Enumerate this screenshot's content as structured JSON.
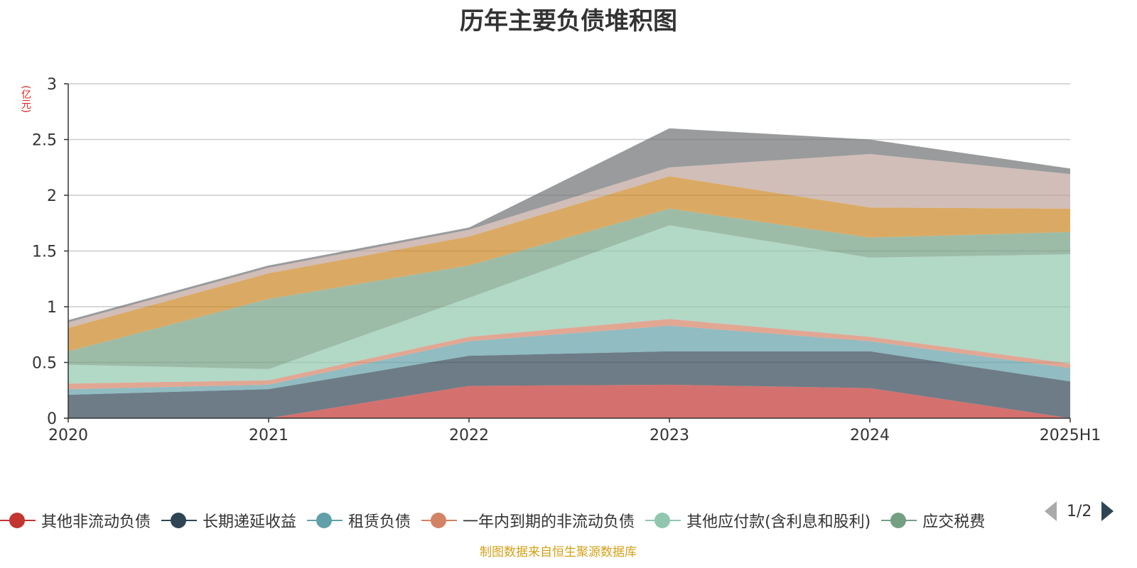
{
  "chart_data": {
    "type": "area",
    "stacked": true,
    "title": "历年主要负债堆积图",
    "unit_label": "(亿元)",
    "categories": [
      "2020",
      "2021",
      "2022",
      "2023",
      "2024",
      "2025H1"
    ],
    "ylim": [
      0,
      3
    ],
    "yticks": [
      "0",
      "0.5",
      "1",
      "1.5",
      "2",
      "2.5",
      "3"
    ],
    "grid": true,
    "series": [
      {
        "name": "其他非流动负债",
        "color": "#c23531",
        "values": [
          0,
          0,
          0.29,
          0.3,
          0.27,
          0
        ]
      },
      {
        "name": "长期递延收益",
        "color": "#2f4554",
        "values": [
          0.21,
          0.26,
          0.27,
          0.3,
          0.33,
          0.33
        ]
      },
      {
        "name": "租赁负债",
        "color": "#61a0a8",
        "values": [
          0.05,
          0.04,
          0.13,
          0.23,
          0.09,
          0.12
        ]
      },
      {
        "name": "一年内到期的非流动负债",
        "color": "#d48265",
        "values": [
          0.05,
          0.04,
          0.04,
          0.06,
          0.04,
          0.04
        ]
      },
      {
        "name": "其他应付款(含利息和股利)",
        "color": "#91c7ae",
        "values": [
          0.17,
          0.1,
          0.35,
          0.84,
          0.71,
          0.98
        ]
      },
      {
        "name": "应交税费",
        "color": "#749f83",
        "values": [
          0.12,
          0.63,
          0.29,
          0.15,
          0.18,
          0.2
        ]
      },
      {
        "name": "",
        "color": "#ca8622",
        "values": [
          0.21,
          0.23,
          0.26,
          0.29,
          0.27,
          0.21
        ]
      },
      {
        "name": "",
        "color": "#bda29a",
        "values": [
          0.05,
          0.05,
          0.06,
          0.08,
          0.48,
          0.31
        ]
      },
      {
        "name": "",
        "color": "#6e7074",
        "values": [
          0.02,
          0.02,
          0.02,
          0.35,
          0.13,
          0.05
        ]
      }
    ]
  },
  "legend": {
    "items": [
      {
        "name": "其他非流动负债",
        "color": "#c23531"
      },
      {
        "name": "长期递延收益",
        "color": "#2f4554"
      },
      {
        "name": "租赁负债",
        "color": "#61a0a8"
      },
      {
        "name": "一年内到期的非流动负债",
        "color": "#d48265"
      },
      {
        "name": "其他应付款(含利息和股利)",
        "color": "#91c7ae"
      },
      {
        "name": "应交税费",
        "color": "#749f83"
      }
    ],
    "page_indicator": "1/2"
  },
  "source_note": "制图数据来自恒生聚源数据库"
}
